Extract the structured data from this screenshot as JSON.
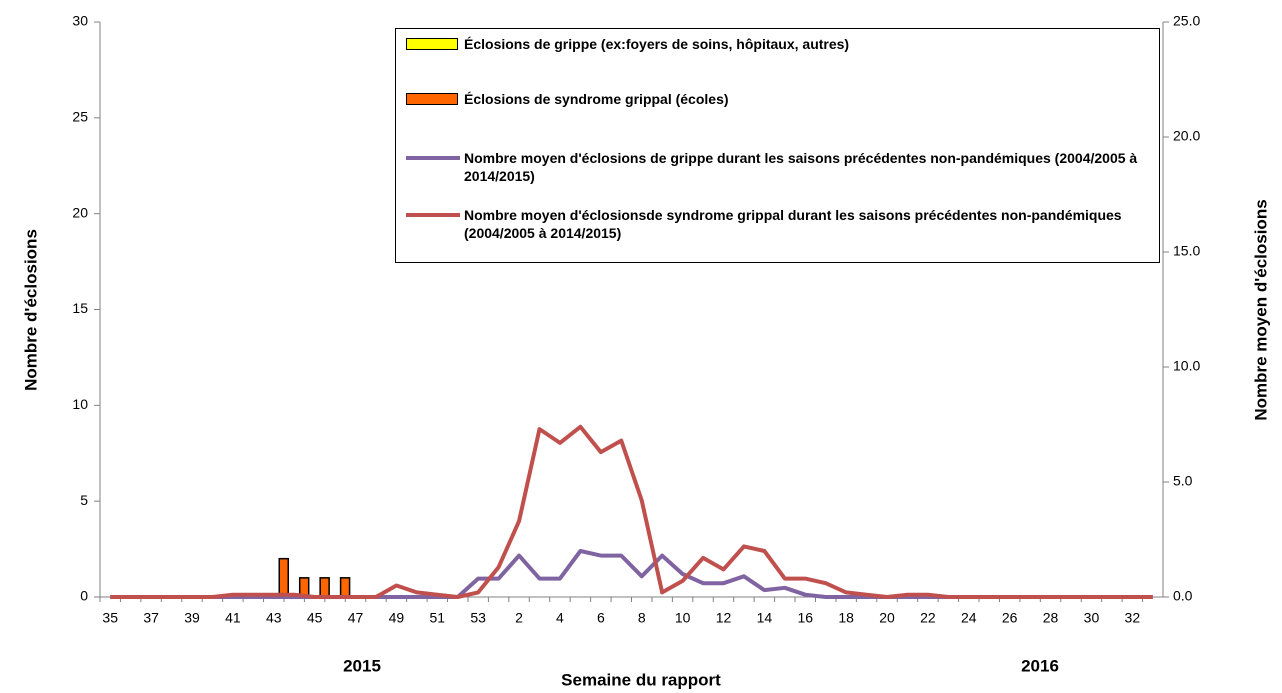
{
  "chart_data": {
    "type": "bar",
    "xlabel": "Semaine du rapport",
    "ylabel": "Nombre d'éclosions",
    "y2label": "Nombre moyen d'éclosions",
    "annotations": [
      "2015",
      "2016"
    ],
    "categories": [
      "35",
      null,
      "37",
      null,
      "39",
      null,
      "41",
      null,
      "43",
      null,
      "45",
      null,
      "47",
      null,
      "49",
      null,
      "51",
      null,
      "53",
      null,
      "2",
      null,
      "4",
      null,
      "6",
      null,
      "8",
      null,
      "10",
      null,
      "12",
      null,
      "14",
      null,
      "16",
      null,
      "18",
      null,
      "20",
      null,
      "22",
      null,
      "24",
      null,
      "26",
      null,
      "28",
      null,
      "30",
      null,
      "32",
      null
    ],
    "ylim": [
      0,
      30
    ],
    "yticks": [
      0,
      5,
      10,
      15,
      20,
      25,
      30
    ],
    "y2lim": [
      0,
      25
    ],
    "y2ticks": [
      {
        "value": 0,
        "label": "0.0"
      },
      {
        "value": 5,
        "label": "5.0"
      },
      {
        "value": 10,
        "label": "10.0"
      },
      {
        "value": 15,
        "label": "15.0"
      },
      {
        "value": 20,
        "label": "20.0"
      },
      {
        "value": 25,
        "label": "25.0"
      }
    ],
    "series": [
      {
        "name": "Éclosions de grippe (ex:foyers de soins, hôpitaux, autres)",
        "type": "bar",
        "color": "#ffff00",
        "values": [
          0,
          0,
          0,
          0,
          0,
          0,
          0,
          0,
          0,
          0,
          0,
          0,
          0,
          0,
          0,
          0,
          0,
          0,
          0,
          0,
          0,
          0,
          0,
          0,
          0,
          0,
          0,
          0,
          0,
          0,
          0,
          0,
          0,
          0,
          0,
          0,
          0,
          0,
          0,
          0,
          0,
          0,
          0,
          0,
          0,
          0,
          0,
          0,
          0,
          0,
          0,
          0
        ]
      },
      {
        "name": "Éclosions de syndrome grippal (écoles)",
        "type": "bar",
        "color": "#ff6600",
        "values": [
          0,
          0,
          0,
          0,
          0,
          0,
          0,
          0,
          2,
          1,
          1,
          1,
          0,
          0,
          0,
          0,
          0,
          0,
          0,
          0,
          0,
          0,
          0,
          0,
          0,
          0,
          0,
          0,
          0,
          0,
          0,
          0,
          0,
          0,
          0,
          0,
          0,
          0,
          0,
          0,
          0,
          0,
          0,
          0,
          0,
          0,
          0,
          0,
          0,
          0,
          0,
          0
        ]
      },
      {
        "name": "Nombre moyen d'éclosions de grippe durant les saisons précédentes non-pandémiques (2004/2005 à 2014/2015)",
        "type": "line",
        "axis": "y2",
        "color": "#8064a2",
        "values": [
          0,
          0,
          0,
          0,
          0,
          0,
          0,
          0,
          0,
          0,
          0,
          0,
          0,
          0,
          0,
          0,
          0,
          0,
          0.8,
          0.8,
          1.8,
          0.8,
          0.8,
          2.0,
          1.8,
          1.8,
          0.9,
          1.8,
          1.0,
          0.6,
          0.6,
          0.9,
          0.3,
          0.4,
          0.1,
          0,
          0,
          0,
          0,
          0,
          0,
          0,
          0,
          0,
          0,
          0,
          0,
          0,
          0,
          0,
          0,
          0
        ]
      },
      {
        "name": "Nombre moyen d'éclosionsde syndrome grippal  durant les saisons précédentes non-pandémiques (2004/2005 à 2014/2015)",
        "type": "line",
        "axis": "y2",
        "color": "#c0504d",
        "values": [
          0,
          0,
          0,
          0,
          0,
          0,
          0.1,
          0.1,
          0.1,
          0.1,
          0,
          0,
          0,
          0,
          0.5,
          0.2,
          0.1,
          0,
          0.2,
          1.3,
          3.3,
          7.3,
          6.7,
          7.4,
          6.3,
          6.8,
          4.2,
          0.2,
          0.7,
          1.7,
          1.2,
          2.2,
          2.0,
          0.8,
          0.8,
          0.6,
          0.2,
          0.1,
          0,
          0.1,
          0.1,
          0,
          0,
          0,
          0,
          0,
          0,
          0,
          0,
          0,
          0,
          0
        ]
      }
    ]
  }
}
